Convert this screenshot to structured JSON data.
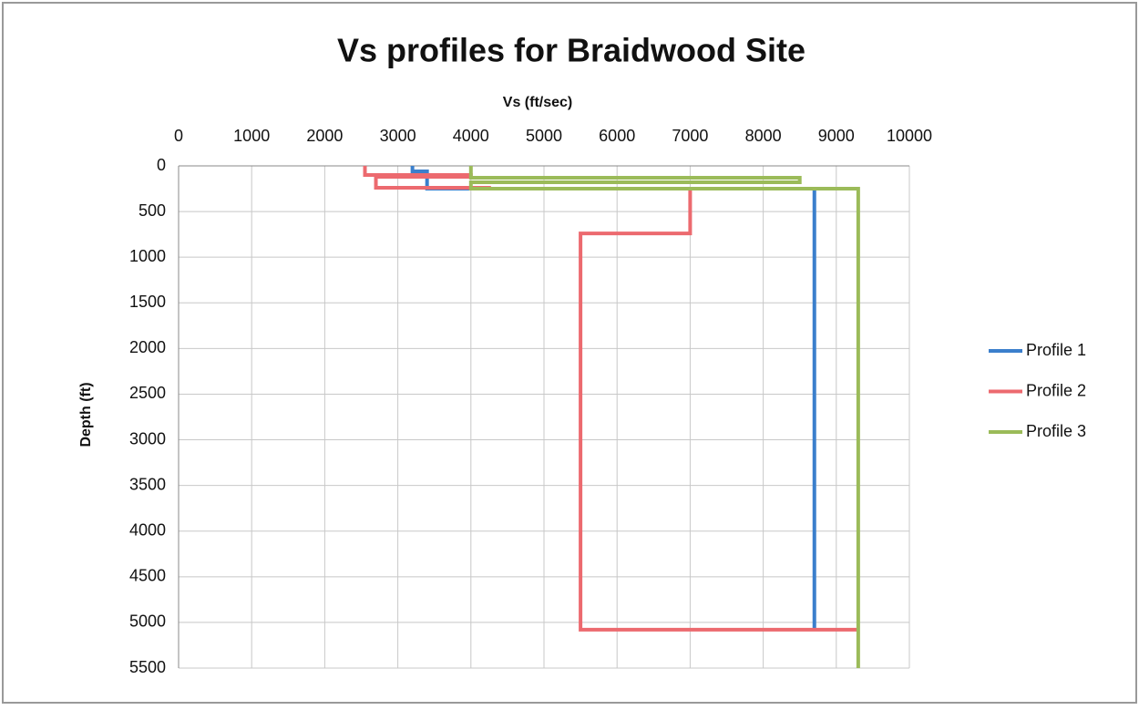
{
  "chart_data": {
    "type": "line",
    "title": "Vs profiles for Braidwood Site",
    "xlabel": "Vs (ft/sec)",
    "ylabel": "Depth (ft)",
    "xlim": [
      0,
      10000
    ],
    "xticks": [
      0,
      1000,
      2000,
      3000,
      4000,
      5000,
      6000,
      7000,
      8000,
      9000,
      10000
    ],
    "ylim": [
      0,
      5500
    ],
    "yticks": [
      0,
      500,
      1000,
      1500,
      2000,
      2500,
      3000,
      3500,
      4000,
      4500,
      5000,
      5500
    ],
    "y_inverted": true,
    "grid": true,
    "legend": "right",
    "series": [
      {
        "name": "Profile 1",
        "color": "#3b7fcc",
        "x": [
          3200,
          3200,
          3400,
          3400,
          8700,
          8700
        ],
        "values": [
          0,
          60,
          60,
          250,
          250,
          5070
        ]
      },
      {
        "name": "Profile 2",
        "color": "#ec6a6f",
        "x": [
          2550,
          2550,
          4000,
          4000,
          2700,
          2700,
          4250,
          4250,
          7000,
          7000,
          5500,
          5500,
          9300
        ],
        "values": [
          0,
          100,
          100,
          120,
          120,
          240,
          240,
          250,
          250,
          740,
          740,
          5080,
          5080
        ]
      },
      {
        "name": "Profile 3",
        "color": "#9bbb59",
        "x": [
          4000,
          4000,
          8500,
          8500,
          4000,
          4000,
          9300,
          9300
        ],
        "values": [
          0,
          130,
          130,
          180,
          180,
          250,
          250,
          5500
        ]
      }
    ]
  }
}
